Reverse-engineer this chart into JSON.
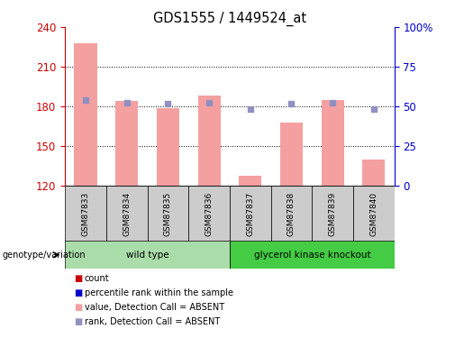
{
  "title": "GDS1555 / 1449524_at",
  "samples": [
    "GSM87833",
    "GSM87834",
    "GSM87835",
    "GSM87836",
    "GSM87837",
    "GSM87838",
    "GSM87839",
    "GSM87840"
  ],
  "bar_values": [
    228,
    184,
    179,
    188,
    128,
    168,
    185,
    140
  ],
  "rank_values": [
    185,
    183,
    182,
    183,
    178,
    182,
    183,
    178
  ],
  "ymin": 120,
  "ymax": 240,
  "yticks": [
    120,
    150,
    180,
    210,
    240
  ],
  "right_yticks": [
    0,
    25,
    50,
    75,
    100
  ],
  "right_ytick_labels": [
    "0",
    "25",
    "50",
    "75",
    "100%"
  ],
  "bar_color": "#f4a0a0",
  "rank_color": "#9090c0",
  "bar_width": 0.55,
  "groups": [
    {
      "label": "wild type",
      "indices": [
        0,
        1,
        2,
        3
      ],
      "color": "#aaddaa"
    },
    {
      "label": "glycerol kinase knockout",
      "indices": [
        4,
        5,
        6,
        7
      ],
      "color": "#44cc44"
    }
  ],
  "group_label": "genotype/variation",
  "legend_items": [
    {
      "color": "#cc0000",
      "label": "count"
    },
    {
      "color": "#0000cc",
      "label": "percentile rank within the sample"
    },
    {
      "color": "#f4a0a0",
      "label": "value, Detection Call = ABSENT"
    },
    {
      "color": "#9090c0",
      "label": "rank, Detection Call = ABSENT"
    }
  ],
  "bg_color": "#ffffff",
  "axis_color_left": "#cc0000",
  "axis_color_right": "#0000cc",
  "tick_label_bg": "#cccccc"
}
